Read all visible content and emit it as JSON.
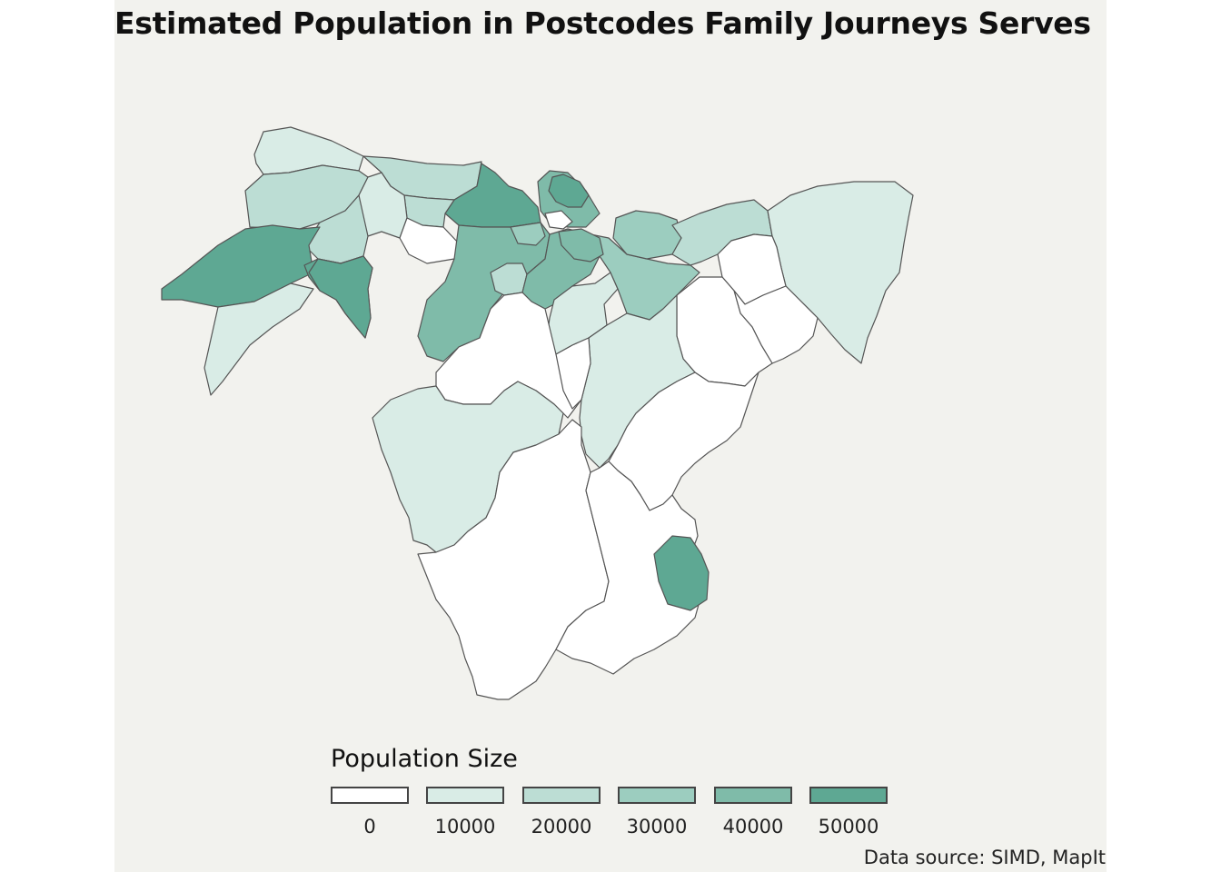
{
  "title": "Estimated Population in Postcodes Family Journeys Serves",
  "source": "Data source: SIMD, MapIt",
  "legend": {
    "title": "Population Size",
    "items": [
      {
        "label": "0",
        "color": "#ffffff"
      },
      {
        "label": "10000",
        "color": "#d9ece6"
      },
      {
        "label": "20000",
        "color": "#bcddd4"
      },
      {
        "label": "30000",
        "color": "#9ccdbf"
      },
      {
        "label": "40000",
        "color": "#7fbba9"
      },
      {
        "label": "50000",
        "color": "#5ea893"
      }
    ]
  },
  "colors": {
    "panel_background": "#f2f2ee",
    "boundary_stroke": "#555555"
  },
  "chart_data": {
    "type": "choropleth",
    "scale": {
      "min": 0,
      "max": 50000,
      "breaks": [
        0,
        10000,
        20000,
        30000,
        40000,
        50000
      ]
    },
    "regions": [
      {
        "population": 12000
      },
      {
        "population": 18000
      },
      {
        "population": 22000
      },
      {
        "population": 46000
      },
      {
        "population": 35000
      },
      {
        "population": 52000
      },
      {
        "population": 15000
      },
      {
        "population": 10000
      },
      {
        "population": 20000
      },
      {
        "population": 3000
      },
      {
        "population": 48000
      },
      {
        "population": 50000
      },
      {
        "population": 42000
      },
      {
        "population": 22000
      },
      {
        "population": 0
      },
      {
        "population": 40000
      },
      {
        "population": 8000
      },
      {
        "population": 30000
      },
      {
        "population": 26000
      },
      {
        "population": 16000
      },
      {
        "population": 10000
      },
      {
        "population": 4000
      },
      {
        "population": 0
      },
      {
        "population": 2000
      },
      {
        "population": 12000
      },
      {
        "population": 0
      },
      {
        "population": 4000
      },
      {
        "population": 12000
      },
      {
        "population": 0
      },
      {
        "population": 0
      },
      {
        "population": 52000
      },
      {
        "population": 45000
      },
      {
        "population": 30000
      },
      {
        "population": 38000
      },
      {
        "population": 6000
      },
      {
        "population": 0
      }
    ]
  }
}
